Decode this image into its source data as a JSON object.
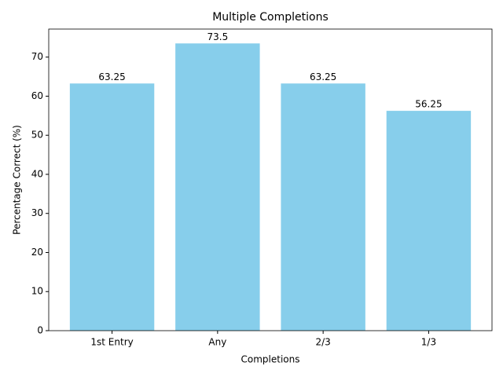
{
  "chart_data": {
    "type": "bar",
    "title": "Multiple Completions",
    "x_label": "Completions",
    "y_label": "Percentage Correct (%)",
    "categories": [
      "1st Entry",
      "Any",
      "2/3",
      "1/3"
    ],
    "values": [
      63.25,
      73.5,
      63.25,
      56.25
    ],
    "color": "#87ceeb",
    "ylim": [
      0,
      77.175
    ],
    "yticks": [
      0,
      10,
      20,
      30,
      40,
      50,
      60,
      70
    ],
    "grid": false,
    "show_value_labels": true
  }
}
